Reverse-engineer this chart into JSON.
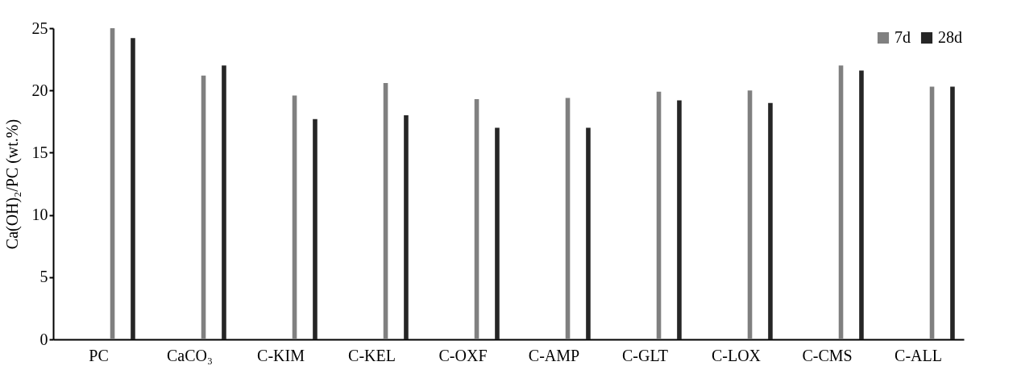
{
  "chart_data": {
    "type": "bar",
    "ylabel": "Ca(OH)₂/PC (wt.%)",
    "categories": [
      "PC",
      "CaCO₃",
      "C-KIM",
      "C-KEL",
      "C-OXF",
      "C-AMP",
      "C-GLT",
      "C-LOX",
      "C-CMS",
      "C-ALL"
    ],
    "series": [
      {
        "name": "7d",
        "color": "#808080",
        "values": [
          25.0,
          21.2,
          19.6,
          20.6,
          19.3,
          19.4,
          19.9,
          20.0,
          22.0,
          20.3
        ]
      },
      {
        "name": "28d",
        "color": "#262626",
        "values": [
          24.2,
          22.0,
          17.7,
          18.0,
          17.0,
          17.0,
          19.2,
          19.0,
          21.6,
          20.3
        ]
      }
    ],
    "ylim": [
      0,
      25
    ],
    "yticks": [
      0,
      5,
      10,
      15,
      20,
      25
    ],
    "grid": false,
    "legend": "top right"
  }
}
